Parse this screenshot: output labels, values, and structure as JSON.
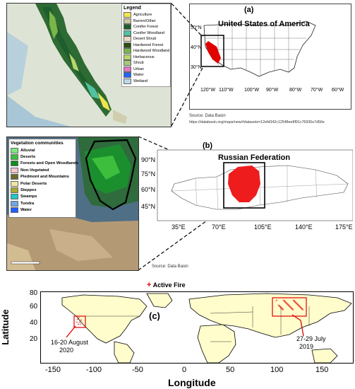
{
  "panel_a": {
    "label": "(a)",
    "title": "United States of America",
    "legend": {
      "title": "Legend",
      "items": [
        {
          "label": "Agriculture",
          "color": "#f2e44a"
        },
        {
          "label": "Barren/Other",
          "color": "#c9c9a6"
        },
        {
          "label": "Conifer Forest",
          "color": "#1e5e2c"
        },
        {
          "label": "Conifer Woodland",
          "color": "#4fc3a1"
        },
        {
          "label": "Desert Shrub",
          "color": "#e9dcc0"
        },
        {
          "label": "Hardwood Forest",
          "color": "#2e4e10"
        },
        {
          "label": "Hardwood Woodland",
          "color": "#7ab648"
        },
        {
          "label": "Herbaceous",
          "color": "#b9d66a"
        },
        {
          "label": "Shrub",
          "color": "#a4c87c"
        },
        {
          "label": "Urban",
          "color": "#e377c2"
        },
        {
          "label": "Water",
          "color": "#2166ff"
        },
        {
          "label": "Wetland",
          "color": "#bcd7ea"
        }
      ]
    },
    "lat_ticks": [
      "50°N",
      "40°N",
      "30°N"
    ],
    "lon_ticks": [
      "120°W",
      "110°W",
      "100°W",
      "90°W",
      "80°W",
      "70°W",
      "60°W"
    ],
    "source_line1": "Source: Data Basin",
    "source_line2": "https://databasin.org/maps/new/#datasets=12efd342c12548ee8f91c76936e7d56e"
  },
  "panel_b": {
    "label": "(b)",
    "title": "Russian Federation",
    "legend": {
      "title": "Vegetation communities",
      "items": [
        {
          "label": "Alluvial",
          "color": "#7ee87e"
        },
        {
          "label": "Deserts",
          "color": "#3dbf3d"
        },
        {
          "label": "Forests and Open Woodlands",
          "color": "#0f8f1f"
        },
        {
          "label": "Non-Vegetated",
          "color": "#f7c5cf"
        },
        {
          "label": "Piedmont and Mountains",
          "color": "#6b6b2a"
        },
        {
          "label": "Polar Deserts",
          "color": "#f0e6a0"
        },
        {
          "label": "Steppes",
          "color": "#a8a830"
        },
        {
          "label": "Swamps",
          "color": "#1fc7c7"
        },
        {
          "label": "Tundra",
          "color": "#6fa8e8"
        },
        {
          "label": "Water",
          "color": "#1f5fff"
        }
      ]
    },
    "lat_ticks": [
      "90°N",
      "75°N",
      "60°N",
      "45°N"
    ],
    "lon_ticks": [
      "35°E",
      "70°E",
      "105°E",
      "140°E",
      "175°E"
    ],
    "source": "Source: Data Basin"
  },
  "panel_c": {
    "label": "(c)",
    "legend_marker": "+",
    "legend_label": "Active Fire",
    "xlabel": "Longitude",
    "ylabel": "Latitude",
    "x_ticks": [
      "-150",
      "-100",
      "-50",
      "0",
      "50",
      "100",
      "150"
    ],
    "y_ticks": [
      "80",
      "60",
      "40",
      "20"
    ],
    "annotation_usa_line1": "16-20 August",
    "annotation_usa_line2": "2020",
    "annotation_russia_line1": "27-29 July",
    "annotation_russia_line2": "2019",
    "marker_color": "#e00000",
    "land_color": "#fffdcc"
  }
}
